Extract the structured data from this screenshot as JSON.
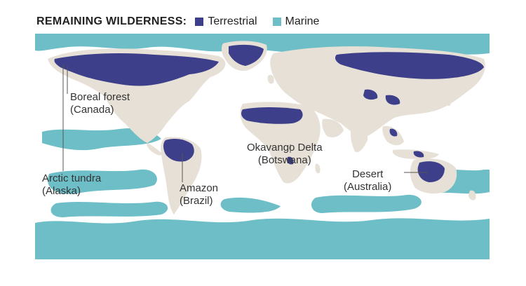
{
  "legend": {
    "title": "REMAINING WILDERNESS:",
    "items": [
      {
        "label": "Terrestrial",
        "color": "#3d3f8a"
      },
      {
        "label": "Marine",
        "color": "#6dbec7"
      }
    ]
  },
  "colors": {
    "land": "#e6e0d6",
    "terrestrial": "#3d3f8a",
    "marine": "#6dbec7",
    "ocean": "#ffffff"
  },
  "annotations": [
    {
      "line1": "Boreal forest",
      "line2": "(Canada)"
    },
    {
      "line1": "Arctic tundra",
      "line2": "(Alaska)"
    },
    {
      "line1": "Amazon",
      "line2": "(Brazil)"
    },
    {
      "line1": "Okavango Delta",
      "line2": "(Botswana)"
    },
    {
      "line1": "Desert",
      "line2": "(Australia)"
    }
  ]
}
